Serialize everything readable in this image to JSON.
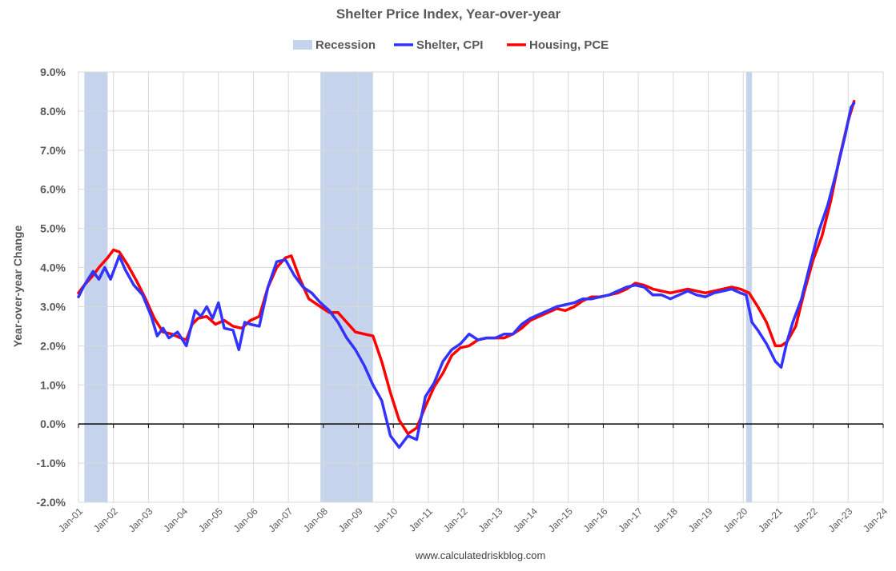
{
  "chart_data": {
    "type": "line",
    "title": "Shelter Price Index, Year-over-year",
    "ylabel": "Year-over-year Change",
    "xlabel": "",
    "footer": "www.calculatedriskblog.com",
    "ylim": [
      -2.0,
      9.0
    ],
    "yticks": [
      "9.0%",
      "8.0%",
      "7.0%",
      "6.0%",
      "5.0%",
      "4.0%",
      "3.0%",
      "2.0%",
      "1.0%",
      "0.0%",
      "-1.0%",
      "-2.0%"
    ],
    "ytick_values": [
      9,
      8,
      7,
      6,
      5,
      4,
      3,
      2,
      1,
      0,
      -1,
      -2
    ],
    "xticks": [
      "Jan-01",
      "Jan-02",
      "Jan-03",
      "Jan-04",
      "Jan-05",
      "Jan-06",
      "Jan-07",
      "Jan-08",
      "Jan-09",
      "Jan-10",
      "Jan-11",
      "Jan-12",
      "Jan-13",
      "Jan-14",
      "Jan-15",
      "Jan-16",
      "Jan-17",
      "Jan-18",
      "Jan-19",
      "Jan-20",
      "Jan-21",
      "Jan-22",
      "Jan-23",
      "Jan-24"
    ],
    "xlim": [
      "2001-01",
      "2024-01"
    ],
    "grid": true,
    "legend_position": "top",
    "recessions": [
      {
        "name": "Recession",
        "start": "2001-03",
        "end": "2001-11"
      },
      {
        "name": "Recession",
        "start": "2007-12",
        "end": "2009-06"
      },
      {
        "name": "Recession",
        "start": "2020-02",
        "end": "2020-04"
      }
    ],
    "legend": [
      {
        "label": "Recession",
        "color": "#c5d3ec",
        "kind": "box"
      },
      {
        "label": "Shelter, CPI",
        "color": "#3333ff",
        "kind": "line"
      },
      {
        "label": "Housing, PCE",
        "color": "#ff0000",
        "kind": "line"
      }
    ],
    "series": [
      {
        "name": "Shelter, CPI",
        "color": "#3333ff",
        "points": [
          [
            "2001-01",
            3.25
          ],
          [
            "2001-03",
            3.55
          ],
          [
            "2001-06",
            3.9
          ],
          [
            "2001-08",
            3.7
          ],
          [
            "2001-10",
            4.0
          ],
          [
            "2001-12",
            3.7
          ],
          [
            "2002-03",
            4.3
          ],
          [
            "2002-05",
            3.95
          ],
          [
            "2002-08",
            3.55
          ],
          [
            "2002-11",
            3.3
          ],
          [
            "2003-02",
            2.75
          ],
          [
            "2003-04",
            2.25
          ],
          [
            "2003-06",
            2.45
          ],
          [
            "2003-08",
            2.2
          ],
          [
            "2003-11",
            2.35
          ],
          [
            "2004-02",
            2.0
          ],
          [
            "2004-05",
            2.9
          ],
          [
            "2004-07",
            2.75
          ],
          [
            "2004-09",
            3.0
          ],
          [
            "2004-11",
            2.7
          ],
          [
            "2005-01",
            3.1
          ],
          [
            "2005-03",
            2.45
          ],
          [
            "2005-06",
            2.4
          ],
          [
            "2005-08",
            1.9
          ],
          [
            "2005-10",
            2.6
          ],
          [
            "2005-12",
            2.55
          ],
          [
            "2006-03",
            2.5
          ],
          [
            "2006-06",
            3.5
          ],
          [
            "2006-09",
            4.15
          ],
          [
            "2006-12",
            4.2
          ],
          [
            "2007-03",
            3.8
          ],
          [
            "2007-06",
            3.5
          ],
          [
            "2007-09",
            3.35
          ],
          [
            "2007-12",
            3.1
          ],
          [
            "2008-03",
            2.9
          ],
          [
            "2008-06",
            2.6
          ],
          [
            "2008-09",
            2.2
          ],
          [
            "2008-12",
            1.9
          ],
          [
            "2009-03",
            1.5
          ],
          [
            "2009-06",
            1.0
          ],
          [
            "2009-09",
            0.6
          ],
          [
            "2009-12",
            -0.3
          ],
          [
            "2010-03",
            -0.6
          ],
          [
            "2010-06",
            -0.3
          ],
          [
            "2010-09",
            -0.4
          ],
          [
            "2010-12",
            0.7
          ],
          [
            "2011-03",
            1.05
          ],
          [
            "2011-06",
            1.6
          ],
          [
            "2011-09",
            1.9
          ],
          [
            "2011-12",
            2.05
          ],
          [
            "2012-03",
            2.3
          ],
          [
            "2012-06",
            2.15
          ],
          [
            "2012-09",
            2.2
          ],
          [
            "2012-12",
            2.2
          ],
          [
            "2013-03",
            2.3
          ],
          [
            "2013-06",
            2.3
          ],
          [
            "2013-09",
            2.55
          ],
          [
            "2013-12",
            2.7
          ],
          [
            "2014-03",
            2.8
          ],
          [
            "2014-06",
            2.9
          ],
          [
            "2014-09",
            3.0
          ],
          [
            "2014-12",
            3.05
          ],
          [
            "2015-03",
            3.1
          ],
          [
            "2015-06",
            3.2
          ],
          [
            "2015-09",
            3.2
          ],
          [
            "2015-12",
            3.25
          ],
          [
            "2016-03",
            3.3
          ],
          [
            "2016-06",
            3.4
          ],
          [
            "2016-09",
            3.5
          ],
          [
            "2016-12",
            3.55
          ],
          [
            "2017-03",
            3.5
          ],
          [
            "2017-06",
            3.3
          ],
          [
            "2017-09",
            3.3
          ],
          [
            "2017-12",
            3.2
          ],
          [
            "2018-03",
            3.3
          ],
          [
            "2018-06",
            3.4
          ],
          [
            "2018-09",
            3.3
          ],
          [
            "2018-12",
            3.25
          ],
          [
            "2019-03",
            3.35
          ],
          [
            "2019-06",
            3.4
          ],
          [
            "2019-09",
            3.45
          ],
          [
            "2019-12",
            3.35
          ],
          [
            "2020-02",
            3.3
          ],
          [
            "2020-04",
            2.6
          ],
          [
            "2020-06",
            2.4
          ],
          [
            "2020-09",
            2.05
          ],
          [
            "2020-12",
            1.6
          ],
          [
            "2021-02",
            1.45
          ],
          [
            "2021-04",
            2.1
          ],
          [
            "2021-06",
            2.6
          ],
          [
            "2021-09",
            3.2
          ],
          [
            "2021-12",
            4.1
          ],
          [
            "2022-03",
            4.95
          ],
          [
            "2022-06",
            5.6
          ],
          [
            "2022-09",
            6.45
          ],
          [
            "2022-12",
            7.4
          ],
          [
            "2023-02",
            8.1
          ],
          [
            "2023-03",
            8.2
          ]
        ]
      },
      {
        "name": "Housing, PCE",
        "color": "#ff0000",
        "points": [
          [
            "2001-01",
            3.35
          ],
          [
            "2001-03",
            3.55
          ],
          [
            "2001-06",
            3.8
          ],
          [
            "2001-08",
            4.0
          ],
          [
            "2001-11",
            4.25
          ],
          [
            "2002-01",
            4.45
          ],
          [
            "2002-03",
            4.4
          ],
          [
            "2002-06",
            4.05
          ],
          [
            "2002-09",
            3.65
          ],
          [
            "2002-12",
            3.2
          ],
          [
            "2003-03",
            2.7
          ],
          [
            "2003-06",
            2.35
          ],
          [
            "2003-09",
            2.3
          ],
          [
            "2003-12",
            2.2
          ],
          [
            "2004-02",
            2.15
          ],
          [
            "2004-04",
            2.55
          ],
          [
            "2004-06",
            2.7
          ],
          [
            "2004-09",
            2.75
          ],
          [
            "2004-12",
            2.55
          ],
          [
            "2005-03",
            2.65
          ],
          [
            "2005-06",
            2.5
          ],
          [
            "2005-09",
            2.45
          ],
          [
            "2005-12",
            2.65
          ],
          [
            "2006-03",
            2.75
          ],
          [
            "2006-06",
            3.5
          ],
          [
            "2006-09",
            4.0
          ],
          [
            "2006-12",
            4.25
          ],
          [
            "2007-02",
            4.3
          ],
          [
            "2007-05",
            3.7
          ],
          [
            "2007-08",
            3.2
          ],
          [
            "2007-12",
            3.0
          ],
          [
            "2008-03",
            2.85
          ],
          [
            "2008-06",
            2.85
          ],
          [
            "2008-09",
            2.6
          ],
          [
            "2008-12",
            2.35
          ],
          [
            "2009-03",
            2.3
          ],
          [
            "2009-06",
            2.25
          ],
          [
            "2009-09",
            1.6
          ],
          [
            "2009-12",
            0.8
          ],
          [
            "2010-03",
            0.1
          ],
          [
            "2010-06",
            -0.25
          ],
          [
            "2010-09",
            -0.1
          ],
          [
            "2010-12",
            0.45
          ],
          [
            "2011-03",
            0.95
          ],
          [
            "2011-06",
            1.3
          ],
          [
            "2011-09",
            1.75
          ],
          [
            "2011-12",
            1.95
          ],
          [
            "2012-03",
            2.0
          ],
          [
            "2012-06",
            2.15
          ],
          [
            "2012-09",
            2.2
          ],
          [
            "2012-12",
            2.2
          ],
          [
            "2013-03",
            2.2
          ],
          [
            "2013-06",
            2.3
          ],
          [
            "2013-09",
            2.45
          ],
          [
            "2013-12",
            2.65
          ],
          [
            "2014-03",
            2.75
          ],
          [
            "2014-06",
            2.85
          ],
          [
            "2014-09",
            2.95
          ],
          [
            "2014-12",
            2.9
          ],
          [
            "2015-03",
            3.0
          ],
          [
            "2015-06",
            3.15
          ],
          [
            "2015-09",
            3.25
          ],
          [
            "2015-12",
            3.25
          ],
          [
            "2016-03",
            3.3
          ],
          [
            "2016-06",
            3.35
          ],
          [
            "2016-09",
            3.45
          ],
          [
            "2016-12",
            3.6
          ],
          [
            "2017-03",
            3.55
          ],
          [
            "2017-06",
            3.45
          ],
          [
            "2017-09",
            3.4
          ],
          [
            "2017-12",
            3.35
          ],
          [
            "2018-03",
            3.4
          ],
          [
            "2018-06",
            3.45
          ],
          [
            "2018-09",
            3.4
          ],
          [
            "2018-12",
            3.35
          ],
          [
            "2019-03",
            3.4
          ],
          [
            "2019-06",
            3.45
          ],
          [
            "2019-09",
            3.5
          ],
          [
            "2019-12",
            3.45
          ],
          [
            "2020-03",
            3.35
          ],
          [
            "2020-06",
            3.0
          ],
          [
            "2020-09",
            2.6
          ],
          [
            "2020-12",
            2.0
          ],
          [
            "2021-02",
            2.0
          ],
          [
            "2021-04",
            2.1
          ],
          [
            "2021-07",
            2.5
          ],
          [
            "2021-10",
            3.4
          ],
          [
            "2022-01",
            4.2
          ],
          [
            "2022-04",
            4.8
          ],
          [
            "2022-07",
            5.7
          ],
          [
            "2022-10",
            6.8
          ],
          [
            "2023-01",
            7.75
          ],
          [
            "2023-03",
            8.25
          ]
        ]
      }
    ]
  }
}
